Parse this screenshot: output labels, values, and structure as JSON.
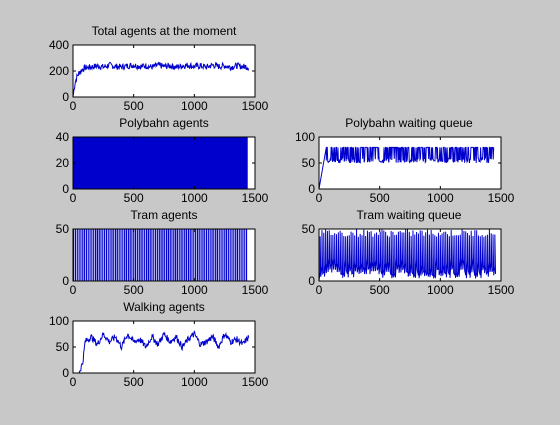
{
  "colors": {
    "figure_bg": "#c8c8c8",
    "axes_bg": "#ffffff",
    "axis": "#000000",
    "line": "#0000cc"
  },
  "chart_data": [
    {
      "id": "total-agents",
      "type": "line",
      "title": "Total agents at the moment",
      "xlabel": "",
      "ylabel": "",
      "xlim": [
        0,
        1500
      ],
      "ylim": [
        0,
        400
      ],
      "xticks": [
        0,
        500,
        1000,
        1500
      ],
      "yticks": [
        0,
        200,
        400
      ],
      "grid": false,
      "pattern": "noisy",
      "x": [
        0,
        10,
        20,
        30,
        40,
        50,
        60,
        80,
        100,
        150,
        200,
        250,
        300,
        350,
        400,
        450,
        500,
        550,
        600,
        650,
        700,
        750,
        800,
        850,
        900,
        950,
        1000,
        1050,
        1100,
        1150,
        1200,
        1250,
        1300,
        1350,
        1400,
        1450
      ],
      "y": [
        0,
        70,
        120,
        150,
        170,
        185,
        195,
        215,
        225,
        230,
        240,
        230,
        245,
        235,
        230,
        240,
        245,
        235,
        240,
        230,
        245,
        235,
        240,
        230,
        240,
        245,
        235,
        240,
        230,
        245,
        235,
        240,
        230,
        240,
        235,
        230
      ]
    },
    {
      "id": "polybahn-agents",
      "type": "area",
      "title": "Polybahn agents",
      "xlabel": "",
      "ylabel": "",
      "xlim": [
        0,
        1500
      ],
      "ylim": [
        0,
        40
      ],
      "xticks": [
        0,
        500,
        1000,
        1500
      ],
      "yticks": [
        0,
        20,
        40
      ],
      "grid": false,
      "pattern": "filled",
      "x": [
        0,
        1440
      ],
      "y": [
        40,
        40
      ]
    },
    {
      "id": "polybahn-queue",
      "type": "line",
      "title": "Polybahn waiting queue",
      "xlabel": "",
      "ylabel": "",
      "xlim": [
        0,
        1500
      ],
      "ylim": [
        0,
        100
      ],
      "xticks": [
        0,
        500,
        1000,
        1500
      ],
      "yticks": [
        0,
        50,
        100
      ],
      "grid": false,
      "pattern": "sawtooth-dense",
      "x": [
        0,
        30,
        60,
        1440
      ],
      "y": [
        0,
        40,
        80,
        80
      ],
      "y_low": 50
    },
    {
      "id": "tram-agents",
      "type": "line",
      "title": "Tram agents",
      "xlabel": "",
      "ylabel": "",
      "xlim": [
        0,
        1500
      ],
      "ylim": [
        0,
        50
      ],
      "xticks": [
        0,
        500,
        1000,
        1500
      ],
      "yticks": [
        0,
        50
      ],
      "grid": false,
      "pattern": "spikes",
      "x": [
        0,
        1440
      ],
      "y": [
        0,
        50
      ],
      "spike_every": 15
    },
    {
      "id": "tram-queue",
      "type": "line",
      "title": "Tram waiting queue",
      "xlabel": "",
      "ylabel": "",
      "xlim": [
        0,
        1500
      ],
      "ylim": [
        0,
        50
      ],
      "xticks": [
        0,
        500,
        1000,
        1500
      ],
      "yticks": [
        0,
        50
      ],
      "grid": false,
      "pattern": "sawtooth",
      "x": [
        0,
        1440
      ],
      "y": [
        0,
        50
      ],
      "period": 15
    },
    {
      "id": "walking-agents",
      "type": "line",
      "title": "Walking agents",
      "xlabel": "",
      "ylabel": "",
      "xlim": [
        0,
        1500
      ],
      "ylim": [
        0,
        100
      ],
      "xticks": [
        0,
        500,
        1000,
        1500
      ],
      "yticks": [
        0,
        50,
        100
      ],
      "grid": false,
      "pattern": "noisy",
      "x": [
        0,
        50,
        80,
        100,
        150,
        200,
        250,
        300,
        350,
        400,
        450,
        500,
        550,
        600,
        650,
        700,
        750,
        800,
        850,
        900,
        950,
        1000,
        1050,
        1100,
        1150,
        1200,
        1250,
        1300,
        1350,
        1400,
        1450
      ],
      "y": [
        0,
        0,
        20,
        60,
        70,
        55,
        75,
        60,
        70,
        50,
        75,
        60,
        65,
        50,
        70,
        55,
        75,
        60,
        70,
        50,
        65,
        75,
        55,
        60,
        70,
        50,
        75,
        60,
        65,
        55,
        70
      ]
    }
  ]
}
